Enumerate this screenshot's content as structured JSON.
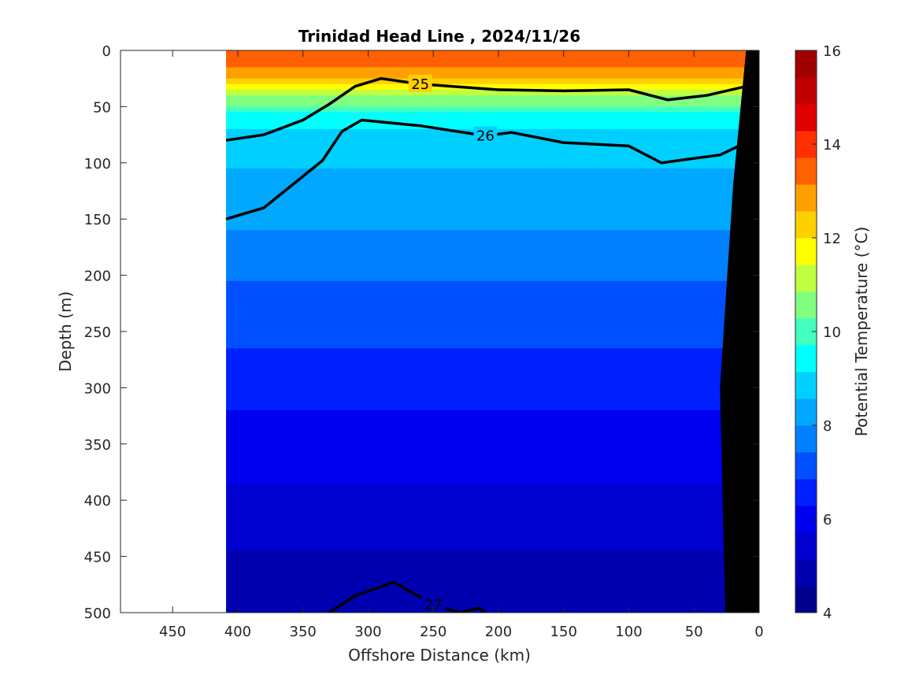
{
  "chart_data": {
    "type": "heatmap",
    "title": "Trinidad Head Line , 2024/11/26",
    "xlabel": "Offshore Distance (km)",
    "ylabel": "Depth (m)",
    "colorbar_label": "Potential Temperature (°C)",
    "xlim": [
      490,
      0
    ],
    "ylim": [
      0,
      500
    ],
    "x_reversed": true,
    "y_reversed": true,
    "x_ticks": [
      "450",
      "400",
      "350",
      "300",
      "250",
      "200",
      "150",
      "100",
      "50",
      "0"
    ],
    "y_ticks": [
      "0",
      "50",
      "100",
      "150",
      "200",
      "250",
      "300",
      "350",
      "400",
      "450",
      "500"
    ],
    "colorbar_range": [
      4,
      16
    ],
    "colorbar_ticks": [
      "4",
      "6",
      "8",
      "10",
      "12",
      "14",
      "16"
    ],
    "colormap": [
      "#00008f",
      "#0000b0",
      "#0000d0",
      "#0000f0",
      "#0020ff",
      "#0050ff",
      "#0080ff",
      "#00a8ff",
      "#00d0ff",
      "#00ffff",
      "#40ffbf",
      "#80ff80",
      "#c0ff40",
      "#ffff00",
      "#ffd000",
      "#ffa000",
      "#ff6000",
      "#ff3000",
      "#e00000",
      "#c00000",
      "#a00000"
    ],
    "section_x_range": [
      409,
      0
    ],
    "temperature_levels": [
      {
        "depth": 0,
        "temp": 13.8
      },
      {
        "depth": 15,
        "temp": 13.2
      },
      {
        "depth": 30,
        "temp": 12.0
      },
      {
        "depth": 45,
        "temp": 10.6
      },
      {
        "depth": 60,
        "temp": 9.4
      },
      {
        "depth": 80,
        "temp": 8.8
      },
      {
        "depth": 110,
        "temp": 8.5
      },
      {
        "depth": 150,
        "temp": 8.1
      },
      {
        "depth": 200,
        "temp": 7.5
      },
      {
        "depth": 250,
        "temp": 7.0
      },
      {
        "depth": 300,
        "temp": 6.5
      },
      {
        "depth": 350,
        "temp": 6.0
      },
      {
        "depth": 400,
        "temp": 5.6
      },
      {
        "depth": 450,
        "temp": 5.1
      },
      {
        "depth": 500,
        "temp": 4.7
      }
    ],
    "density_contours": [
      {
        "label": "25",
        "points": [
          [
            409,
            80
          ],
          [
            380,
            75
          ],
          [
            350,
            62
          ],
          [
            330,
            48
          ],
          [
            310,
            32
          ],
          [
            290,
            25
          ],
          [
            260,
            30
          ],
          [
            200,
            35
          ],
          [
            150,
            36
          ],
          [
            100,
            35
          ],
          [
            70,
            44
          ],
          [
            40,
            40
          ],
          [
            10,
            32
          ]
        ]
      },
      {
        "label": "26",
        "points": [
          [
            409,
            150
          ],
          [
            380,
            140
          ],
          [
            350,
            112
          ],
          [
            335,
            98
          ],
          [
            320,
            72
          ],
          [
            305,
            62
          ],
          [
            260,
            67
          ],
          [
            210,
            76
          ],
          [
            190,
            73
          ],
          [
            150,
            82
          ],
          [
            100,
            85
          ],
          [
            75,
            100
          ],
          [
            50,
            96
          ],
          [
            30,
            93
          ],
          [
            10,
            82
          ]
        ]
      },
      {
        "label": "27",
        "points": [
          [
            330,
            500
          ],
          [
            310,
            485
          ],
          [
            280,
            473
          ],
          [
            250,
            493
          ],
          [
            230,
            500
          ],
          [
            215,
            496
          ],
          [
            210,
            500
          ]
        ]
      }
    ],
    "bathymetry": [
      [
        0,
        0
      ],
      [
        0,
        500
      ],
      [
        26,
        500
      ],
      [
        30,
        300
      ],
      [
        20,
        120
      ],
      [
        10,
        0
      ]
    ]
  }
}
